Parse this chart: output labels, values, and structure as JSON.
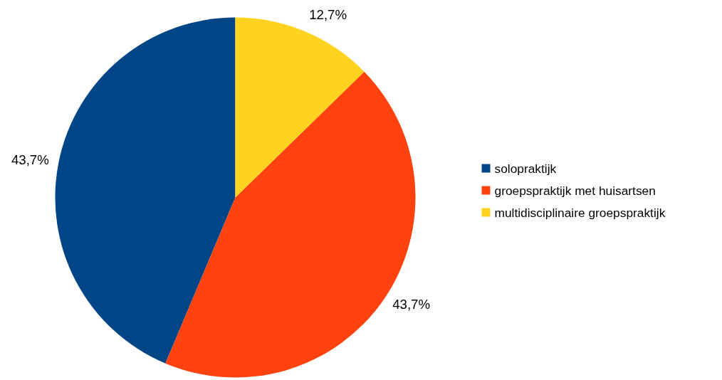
{
  "chart_data": {
    "type": "pie",
    "categories": [
      "solopraktijk",
      "groepspraktijk met huisartsen",
      "multidisciplinaire groepspraktijk"
    ],
    "values": [
      43.7,
      43.7,
      12.7
    ],
    "colors": [
      "#004586",
      "#ff420e",
      "#ffd320"
    ],
    "value_labels": [
      "43,7%",
      "43,7%",
      "12,7%"
    ],
    "legend": "right"
  }
}
